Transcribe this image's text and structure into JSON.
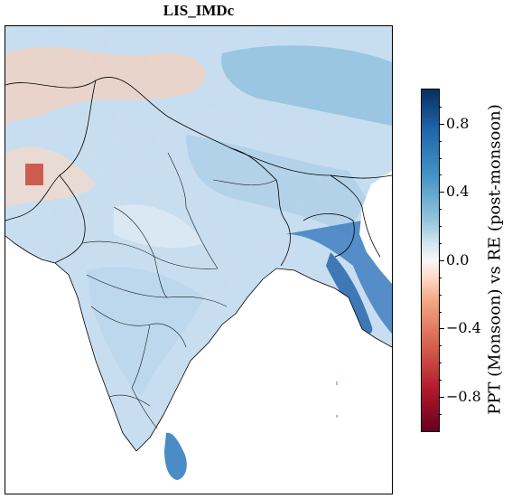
{
  "title": "LIS_IMDc",
  "colorbar": {
    "label": "PPT (Monsoon) vs RE (post-monsoon)",
    "range": [
      -1.0,
      1.0
    ],
    "ticks": [
      "0.8",
      "0.4",
      "0.0",
      "−0.4",
      "−0.8"
    ],
    "colormap": "RdBu",
    "colors": [
      "#053061",
      "#2166ac",
      "#4393c3",
      "#92c5de",
      "#d1e5f0",
      "#f7f7f7",
      "#fddbc7",
      "#f4a582",
      "#d6604d",
      "#b2182b",
      "#67001f"
    ]
  },
  "map": {
    "region": "South Asia (India and surroundings)",
    "field": "correlation",
    "boundaries": "country and state borders"
  }
}
